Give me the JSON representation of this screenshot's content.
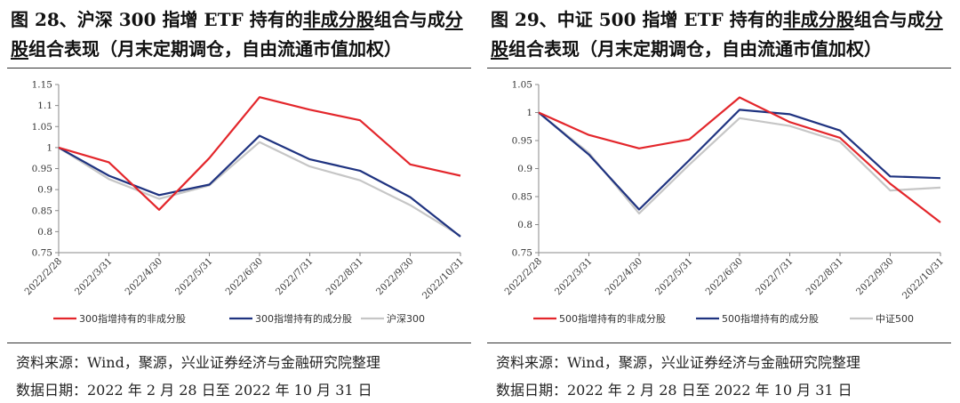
{
  "charts": [
    {
      "title_prefix": "图 28、沪深 300 指增 ETF 持有的",
      "title_ul1": "非成分股",
      "title_mid": "组合与成",
      "title_ul2": "分股",
      "title_suffix": "组合表现（月末定期调仓，自由流通市值加权）",
      "source": "资料来源：Wind，聚源，兴业证券经济与金融研究院整理",
      "date_range": "数据日期：2022 年 2 月 28 日至 2022 年 10 月 31 日"
    },
    {
      "title_prefix": "图 29、中证 500 指增 ETF 持有的",
      "title_ul1": "非成分股",
      "title_mid": "组合与成",
      "title_ul2": "分股",
      "title_suffix": "组合表现（月末定期调仓，自由流通市值加权）",
      "source": "资料来源：Wind，聚源，兴业证券经济与金融研究院整理",
      "date_range": "数据日期：2022 年 2 月 28 日至 2022 年 10 月 31 日"
    }
  ],
  "chart_data": [
    {
      "type": "line",
      "categories": [
        "2022/2/28",
        "2022/3/31",
        "2022/4/30",
        "2022/5/31",
        "2022/6/30",
        "2022/7/31",
        "2022/8/31",
        "2022/9/30",
        "2022/10/31"
      ],
      "y_ticks": [
        "1.15",
        "1.1",
        "1.05",
        "1",
        "0.95",
        "0.9",
        "0.85",
        "0.8",
        "0.75"
      ],
      "ylim": [
        0.75,
        1.15
      ],
      "grid": false,
      "legend_position": "bottom",
      "series": [
        {
          "name": "300指增持有的非成分股",
          "color": "#e3262b",
          "values": [
            1.0,
            0.965,
            0.852,
            0.975,
            1.12,
            1.09,
            1.065,
            0.96,
            0.933
          ]
        },
        {
          "name": "300指增持有的成分股",
          "color": "#1f3380",
          "values": [
            1.0,
            0.933,
            0.887,
            0.912,
            1.028,
            0.972,
            0.945,
            0.882,
            0.788
          ]
        },
        {
          "name": "沪深300",
          "color": "#c6c6c6",
          "values": [
            1.0,
            0.925,
            0.878,
            0.91,
            1.013,
            0.955,
            0.922,
            0.863,
            0.79
          ]
        }
      ]
    },
    {
      "type": "line",
      "categories": [
        "2022/2/28",
        "2022/3/31",
        "2022/4/30",
        "2022/5/31",
        "2022/6/30",
        "2022/7/31",
        "2022/8/31",
        "2022/9/30",
        "2022/10/31"
      ],
      "y_ticks": [
        "1.05",
        "1",
        "0.95",
        "0.9",
        "0.85",
        "0.8",
        "0.75"
      ],
      "ylim": [
        0.75,
        1.05
      ],
      "grid": false,
      "legend_position": "bottom",
      "series": [
        {
          "name": "500指增持有的非成分股",
          "color": "#e3262b",
          "values": [
            1.0,
            0.96,
            0.936,
            0.952,
            1.027,
            0.983,
            0.955,
            0.873,
            0.804
          ]
        },
        {
          "name": "500指增持有的成分股",
          "color": "#1f3380",
          "values": [
            1.0,
            0.925,
            0.827,
            0.915,
            1.005,
            0.997,
            0.968,
            0.886,
            0.883
          ]
        },
        {
          "name": "中证500",
          "color": "#c6c6c6",
          "values": [
            1.0,
            0.928,
            0.82,
            0.907,
            0.99,
            0.976,
            0.948,
            0.861,
            0.866
          ]
        }
      ]
    }
  ]
}
